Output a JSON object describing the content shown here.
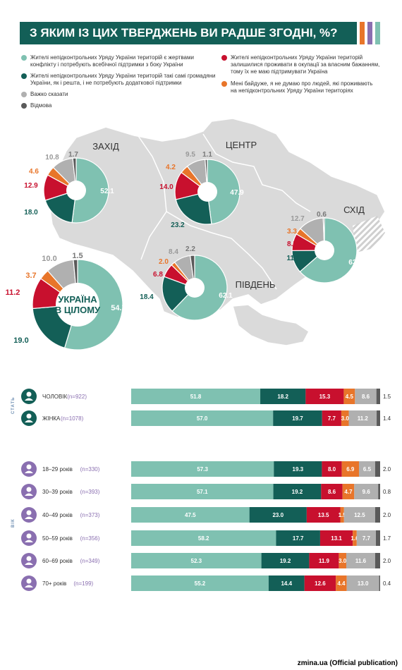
{
  "title": "З ЯКИМ ІЗ ЦИХ ТВЕРДЖЕНЬ ВИ РАДШЕ ЗГОДНІ, %?",
  "colors": {
    "teal_light": "#7fc1b1",
    "teal_dark": "#135f57",
    "red": "#c8102e",
    "orange": "#e8752a",
    "gray": "#b0b0b0",
    "dark_gray": "#5a5a5a",
    "map": "#dadada",
    "accent_purple": "#8a6fb0"
  },
  "legend": [
    {
      "text_lines": [
        "Жителі непідконтрольних Уряду України територій є жертвами",
        "конфлікту і потребують всебічної підтримки з боку України"
      ],
      "color": "#7fc1b1"
    },
    {
      "text_lines": [
        "Жителі непідконтрольних Уряду України територій такі самі громадяни",
        "України, як і решта, і не потребують додаткової підтримки"
      ],
      "color": "#135f57"
    },
    {
      "text_lines": [
        "Важко сказати"
      ],
      "color": "#b0b0b0"
    },
    {
      "text_lines": [
        "Відмова"
      ],
      "color": "#5a5a5a"
    },
    {
      "text_lines": [
        "Жителі непідконтрольних Уряду України територій",
        "залишилися проживати в окупації за власним бажанням,",
        "тому їх не маю підтримувати Україна"
      ],
      "color": "#c8102e"
    },
    {
      "text_lines": [
        "Мені байдуже, я не думаю про людей, які проживають",
        "на непідконтрольних Уряду України територіях"
      ],
      "color": "#e8752a"
    }
  ],
  "chart_data": [
    {
      "type": "pie",
      "title": "ЗАХІД",
      "slices": [
        {
          "name": "teal_light",
          "value": 52.1
        },
        {
          "name": "teal_dark",
          "value": 18.0
        },
        {
          "name": "red",
          "value": 12.9
        },
        {
          "name": "orange",
          "value": 4.6
        },
        {
          "name": "gray",
          "value": 10.8
        },
        {
          "name": "dark_gray",
          "value": 1.7
        }
      ]
    },
    {
      "type": "pie",
      "title": "ЦЕНТР",
      "slices": [
        {
          "name": "teal_light",
          "value": 47.9
        },
        {
          "name": "teal_dark",
          "value": 23.2
        },
        {
          "name": "red",
          "value": 14.0
        },
        {
          "name": "orange",
          "value": 4.2
        },
        {
          "name": "gray",
          "value": 9.5
        },
        {
          "name": "dark_gray",
          "value": 1.1
        }
      ]
    },
    {
      "type": "pie",
      "title": "СХІД",
      "slices": [
        {
          "name": "teal_light",
          "value": 63.6
        },
        {
          "name": "teal_dark",
          "value": 11.3
        },
        {
          "name": "red",
          "value": 8.5
        },
        {
          "name": "orange",
          "value": 3.3
        },
        {
          "name": "gray",
          "value": 12.7
        },
        {
          "name": "dark_gray",
          "value": 0.6
        }
      ]
    },
    {
      "type": "pie",
      "title": "ПІВДЕНЬ",
      "slices": [
        {
          "name": "teal_light",
          "value": 62.1
        },
        {
          "name": "teal_dark",
          "value": 18.4
        },
        {
          "name": "red",
          "value": 6.8
        },
        {
          "name": "orange",
          "value": 2.0
        },
        {
          "name": "gray",
          "value": 8.4
        },
        {
          "name": "dark_gray",
          "value": 2.2
        }
      ]
    },
    {
      "type": "pie",
      "title": "УКРАЇНА В ЦІЛОМУ",
      "title_lines": [
        "УКРАЇНА",
        "В ЦІЛОМУ"
      ],
      "slices": [
        {
          "name": "teal_light",
          "value": 54.7
        },
        {
          "name": "teal_dark",
          "value": 19.0
        },
        {
          "name": "red",
          "value": 11.2
        },
        {
          "name": "orange",
          "value": 3.7
        },
        {
          "name": "gray",
          "value": 10.0
        },
        {
          "name": "dark_gray",
          "value": 1.5
        }
      ]
    },
    {
      "type": "bar",
      "stacked": true,
      "orientation": "horizontal",
      "group_label": "СТАТЬ",
      "rows": [
        {
          "label": "ЧОЛОВІК",
          "n": "(n=922)",
          "icon": "male-icon",
          "values": [
            51.8,
            18.2,
            15.3,
            4.5,
            8.6,
            1.5
          ]
        },
        {
          "label": "ЖІНКА",
          "n": "(n=1078)",
          "icon": "female-icon",
          "values": [
            57.0,
            19.7,
            7.7,
            3.0,
            11.2,
            1.4
          ]
        }
      ]
    },
    {
      "type": "bar",
      "stacked": true,
      "orientation": "horizontal",
      "group_label": "ВІК",
      "rows": [
        {
          "label": "18–29 років",
          "n": "(n=330)",
          "icon": "person-icon",
          "values": [
            57.3,
            19.3,
            8.0,
            6.9,
            6.5,
            2.0
          ]
        },
        {
          "label": "30–39 років",
          "n": "(n=393)",
          "icon": "person-icon",
          "values": [
            57.1,
            19.2,
            8.6,
            4.7,
            9.6,
            0.8
          ]
        },
        {
          "label": "40–49 років",
          "n": "(n=373)",
          "icon": "person-icon",
          "values": [
            47.5,
            23.0,
            13.5,
            1.5,
            12.5,
            2.0
          ]
        },
        {
          "label": "50–59 років",
          "n": "(n=356)",
          "icon": "person-icon",
          "values": [
            58.2,
            17.7,
            13.1,
            1.6,
            7.7,
            1.7
          ]
        },
        {
          "label": "60–69 років",
          "n": "(n=349)",
          "icon": "person-icon",
          "values": [
            52.3,
            19.2,
            11.9,
            3.0,
            11.6,
            2.0
          ]
        },
        {
          "label": "70+ років",
          "n": "(n=199)",
          "icon": "person-icon",
          "values": [
            55.2,
            14.4,
            12.6,
            4.4,
            13.0,
            0.4
          ]
        }
      ]
    }
  ],
  "footer": "zmina.ua (Official publication)"
}
